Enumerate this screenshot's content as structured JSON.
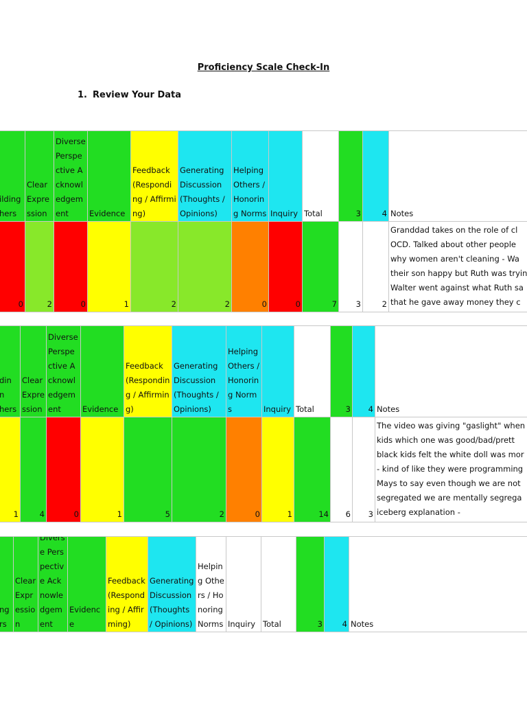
{
  "title": "Proficiency Scale Check-In",
  "section": {
    "number": "1.",
    "title": "Review Your Data"
  },
  "tables": [
    {
      "header": [
        "ilding\nhers",
        "Clear Expression",
        "Diverse Perspective Acknowledgement",
        "Evidence",
        "Feedback (Responding / Affirming)",
        "Generating Discussion (Thoughts / Opinions)",
        "Helping Others / Honoring Norms",
        "Inquiry",
        "Total",
        3,
        4,
        "Notes"
      ],
      "header_colors": [
        "#22dd22",
        "#22dd22",
        "#22dd22",
        "#22dd22",
        "#ffff00",
        "#1ee6f0",
        "#1ee6f0",
        "#1ee6f0",
        "#ffffff",
        "#22dd22",
        "#1ee6f0",
        "#ffffff"
      ],
      "row": [
        0,
        2,
        0,
        1,
        2,
        2,
        0,
        0,
        7,
        3,
        2,
        "Granddad takes on the role of cl\nOCD. Talked about other people\nwhy women aren't cleaning - Wa\ntheir son happy but Ruth was tryin\nWalter went against what Ruth sa\nthat he gave away money they c"
      ],
      "row_colors": [
        "#ff0000",
        "#88e82a",
        "#ff0000",
        "#ffff00",
        "#88e82a",
        "#88e82a",
        "#ff8000",
        "#ff0000",
        "#22dd22",
        "#ffffff",
        "#ffffff",
        "#ffffff"
      ]
    },
    {
      "header": [
        "din\nn\nhers",
        "Clear Expression",
        "Diverse Perspective Acknowledgement",
        "Evidence",
        "Feedback (Responding / Affirming)",
        "Generating Discussion (Thoughts / Opinions)",
        "Helping Others / Honoring Norms",
        "Inquiry",
        "Total",
        3,
        4,
        "Notes"
      ],
      "header_colors": [
        "#22dd22",
        "#22dd22",
        "#22dd22",
        "#22dd22",
        "#ffff00",
        "#1ee6f0",
        "#1ee6f0",
        "#1ee6f0",
        "#ffffff",
        "#22dd22",
        "#1ee6f0",
        "#ffffff"
      ],
      "row": [
        1,
        4,
        0,
        1,
        5,
        2,
        0,
        1,
        14,
        6,
        3,
        "The video was giving \"gaslight\" when\nkids which one was good/bad/prett\nblack kids felt the white doll was mor\n- kind of like they were programming\nMays to say even though we are not\nsegregated we are mentally segrega\niceberg explanation -"
      ],
      "row_colors": [
        "#ffff00",
        "#22dd22",
        "#ff0000",
        "#ffff00",
        "#22dd22",
        "#22dd22",
        "#ff8000",
        "#ffff00",
        "#22dd22",
        "#ffffff",
        "#ffffff",
        "#ffffff"
      ]
    },
    {
      "header": [
        "ng\nrs",
        "Clear Expression",
        "Diverse Perspective Acknowledgement",
        "Evidence",
        "Feedback (Responding / Affirming)",
        "Generating Discussion (Thoughts / Opinions)",
        "Helping Others / Honoring Norms",
        "Inquiry",
        "Total",
        3,
        4,
        "Notes"
      ],
      "header_colors": [
        "#22dd22",
        "#22dd22",
        "#22dd22",
        "#22dd22",
        "#ffff00",
        "#1ee6f0",
        "#ffffff",
        "#ffffff",
        "#ffffff",
        "#22dd22",
        "#1ee6f0",
        "#ffffff"
      ]
    }
  ]
}
